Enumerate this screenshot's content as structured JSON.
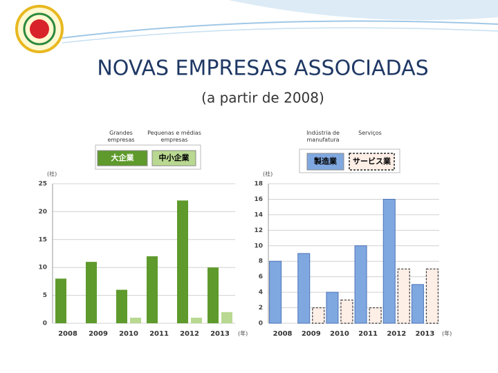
{
  "title": "NOVAS EMPRESAS ASSOCIADAS",
  "subtitle": "(a partir de 2008)",
  "chart_data": [
    {
      "type": "bar",
      "categories": [
        "2008",
        "2009",
        "2010",
        "2011",
        "2012",
        "2013"
      ],
      "y_unit": "(社)",
      "x_unit": "(年)",
      "ylim": [
        0,
        25
      ],
      "yticks": [
        0,
        5,
        10,
        15,
        20,
        25
      ],
      "grid": true,
      "series": [
        {
          "name": "大企業",
          "caption": "Grandes empresas",
          "color": "#5e9a2c",
          "values": [
            8,
            11,
            6,
            12,
            22,
            10
          ]
        },
        {
          "name": "中小企業",
          "caption": "Pequenas e médias empresas",
          "color": "#b9d891",
          "values": [
            0,
            0,
            1,
            0,
            1,
            2
          ]
        }
      ]
    },
    {
      "type": "bar",
      "categories": [
        "2008",
        "2009",
        "2010",
        "2011",
        "2012",
        "2013"
      ],
      "y_unit": "(社)",
      "x_unit": "(年)",
      "ylim": [
        0,
        18
      ],
      "yticks": [
        0,
        2,
        4,
        6,
        8,
        10,
        12,
        14,
        16,
        18
      ],
      "grid": true,
      "series": [
        {
          "name": "製造業",
          "caption": "Indústria de manufatura",
          "color": "#80a8e0",
          "dashed": false,
          "values": [
            8,
            9,
            4,
            10,
            16,
            5
          ]
        },
        {
          "name": "サービス業",
          "caption": "Serviços",
          "color": "#fdeee6",
          "dashed": true,
          "values": [
            0,
            2,
            3,
            2,
            7,
            7
          ]
        }
      ]
    }
  ]
}
